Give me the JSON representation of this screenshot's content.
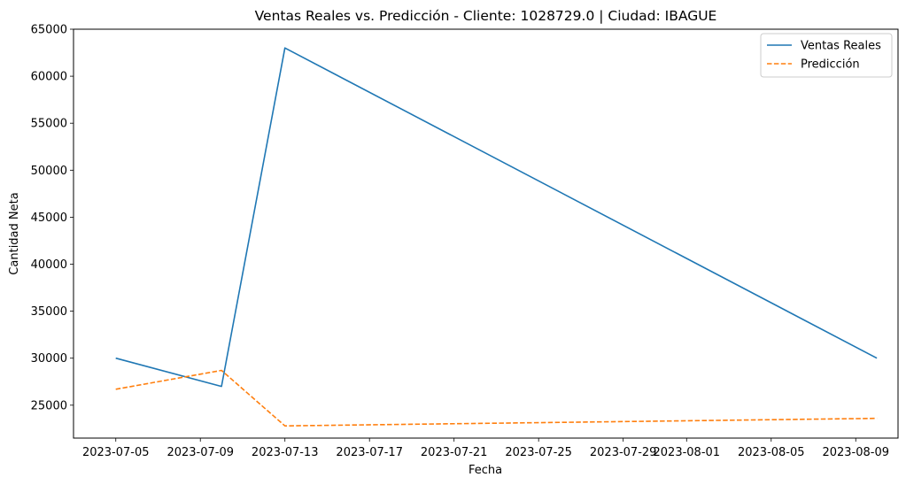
{
  "chart_data": {
    "type": "line",
    "title": "Ventas Reales vs. Predicción - Cliente: 1028729.0 | Ciudad: IBAGUE",
    "xlabel": "Fecha",
    "ylabel": "Cantidad Neta",
    "ylim": [
      21500,
      65000
    ],
    "xlim": [
      "2023-07-03",
      "2023-08-11"
    ],
    "x_ticks": [
      "2023-07-05",
      "2023-07-09",
      "2023-07-13",
      "2023-07-17",
      "2023-07-21",
      "2023-07-25",
      "2023-07-29",
      "2023-08-01",
      "2023-08-05",
      "2023-08-09"
    ],
    "y_ticks": [
      25000,
      30000,
      35000,
      40000,
      45000,
      50000,
      55000,
      60000,
      65000
    ],
    "grid": false,
    "legend_position": "top-right",
    "series": [
      {
        "name": "Ventas Reales",
        "color": "#1f77b4",
        "style": "solid",
        "points": [
          {
            "x": "2023-07-05",
            "y": 30000
          },
          {
            "x": "2023-07-10",
            "y": 27000
          },
          {
            "x": "2023-07-13",
            "y": 63000
          },
          {
            "x": "2023-08-10",
            "y": 30000
          }
        ]
      },
      {
        "name": "Predicción",
        "color": "#ff7f0e",
        "style": "dashed",
        "points": [
          {
            "x": "2023-07-05",
            "y": 26700
          },
          {
            "x": "2023-07-10",
            "y": 28700
          },
          {
            "x": "2023-07-13",
            "y": 22800
          },
          {
            "x": "2023-08-10",
            "y": 23600
          }
        ]
      }
    ]
  }
}
